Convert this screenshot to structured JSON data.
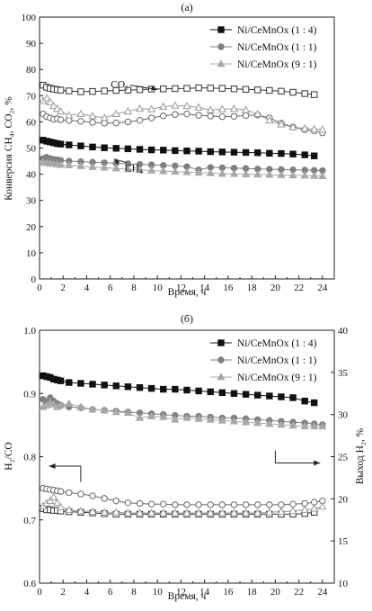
{
  "chart_data": [
    {
      "type": "line",
      "panel_label": "(а)",
      "xlabel": "Время, ч",
      "ylabel_left": "Конверсия CH₄, CO₂, %",
      "xlim": [
        0,
        25
      ],
      "ylim": [
        0,
        100
      ],
      "xticks": [
        "0",
        "2",
        "4",
        "6",
        "8",
        "10",
        "12",
        "14",
        "16",
        "18",
        "20",
        "22",
        "24"
      ],
      "yticks": [
        "0",
        "10",
        "20",
        "30",
        "40",
        "50",
        "60",
        "70",
        "80",
        "90",
        "100"
      ],
      "grid": false,
      "legend_position": "top-right",
      "annotations": [
        {
          "text": "CO₂",
          "points_to": "CO2 group",
          "at": [
            6.8,
            73
          ]
        },
        {
          "text": "CH₄",
          "points_to": "CH4 group",
          "at": [
            8.0,
            41
          ]
        }
      ],
      "series": [
        {
          "name": "Ni/CeMnOx (1 : 4)",
          "group": "CH4",
          "marker": "square-filled",
          "color": "#111111",
          "x": [
            0.3,
            0.6,
            0.9,
            1.2,
            1.5,
            1.8,
            2.5,
            3.5,
            4.5,
            5.5,
            6.5,
            7.5,
            8.5,
            9.5,
            10.5,
            11.5,
            12.5,
            13.5,
            14.5,
            15.5,
            16.5,
            17.5,
            18.5,
            19.5,
            20.5,
            21.5,
            22.5,
            23.3
          ],
          "y": [
            53,
            52.6,
            52.3,
            52,
            51.7,
            51.5,
            51.2,
            50.8,
            50.4,
            50.1,
            49.9,
            49.7,
            49.5,
            49.3,
            49.2,
            49,
            48.9,
            48.8,
            48.6,
            48.5,
            48.4,
            48.3,
            48.2,
            48,
            47.9,
            47.7,
            47.4,
            47
          ]
        },
        {
          "name": "Ni/CeMnOx (1 : 1)",
          "group": "CH4",
          "marker": "circle-filled",
          "color": "#808080",
          "x": [
            0.3,
            0.6,
            0.9,
            1.2,
            1.5,
            1.8,
            2.5,
            3.5,
            4.5,
            5.5,
            6.5,
            7.5,
            8.5,
            9.5,
            10.5,
            11.5,
            12.5,
            13.5,
            14.5,
            15.5,
            16.5,
            17.5,
            18.5,
            19.5,
            20.5,
            21.5,
            22.5,
            23.3,
            24
          ],
          "y": [
            46,
            46.5,
            46,
            45.7,
            45.5,
            45.3,
            45,
            44.8,
            44.6,
            44.4,
            44.2,
            44,
            43.8,
            43.6,
            43.4,
            43.2,
            42.9,
            41.7,
            42.6,
            42.5,
            42.3,
            42.2,
            42,
            41.9,
            41.8,
            41.7,
            41.6,
            41.5,
            41.4
          ]
        },
        {
          "name": "Ni/CeMnOx (9 : 1)",
          "group": "CH4",
          "marker": "triangle-filled",
          "color": "#a8a8a8",
          "x": [
            0.3,
            0.6,
            0.9,
            1.2,
            1.5,
            1.8,
            2.5,
            3.5,
            4.5,
            5.5,
            6.5,
            7.5,
            8.5,
            9.5,
            10.5,
            11.5,
            12.5,
            13.5,
            14.5,
            15.5,
            16.5,
            17.5,
            18.5,
            19.5,
            20.5,
            21.5,
            22.5,
            23.3,
            24
          ],
          "y": [
            44.5,
            44.3,
            44.1,
            44,
            43.8,
            43.6,
            43.4,
            43.1,
            42.8,
            42.5,
            42.2,
            41.9,
            41.6,
            41.4,
            41.2,
            41,
            40.8,
            40.6,
            40.4,
            40.2,
            40.1,
            40,
            39.9,
            39.8,
            39.7,
            39.6,
            39.5,
            39.4,
            39.3
          ]
        },
        {
          "name": "Ni/CeMnOx (1 : 4)",
          "group": "CO2",
          "marker": "square-open",
          "color": "#333333",
          "x": [
            0.3,
            0.6,
            0.9,
            1.2,
            1.5,
            1.8,
            2.5,
            3.5,
            4.5,
            5.5,
            6.5,
            7.5,
            8.5,
            9.5,
            10.5,
            11.5,
            12.5,
            13.5,
            14.5,
            15.5,
            16.5,
            17.5,
            18.5,
            19.5,
            20.5,
            21.5,
            22.5,
            23.3
          ],
          "y": [
            74,
            73.2,
            72.8,
            72.5,
            72.3,
            72.1,
            71.8,
            71.5,
            71.6,
            71.8,
            72,
            72.1,
            72.3,
            72.5,
            72.6,
            72.7,
            72.8,
            73,
            72.9,
            72.8,
            72.6,
            72.4,
            72.2,
            72,
            71.7,
            71.3,
            70.8,
            70.4
          ]
        },
        {
          "name": "Ni/CeMnOx (1 : 1)",
          "group": "CO2",
          "marker": "circle-open",
          "color": "#666666",
          "x": [
            0.3,
            0.6,
            0.9,
            1.2,
            1.5,
            1.8,
            2.5,
            3.5,
            4.5,
            5.5,
            6.5,
            7.5,
            8.5,
            9.5,
            10.5,
            11.5,
            12.5,
            13.5,
            14.5,
            15.5,
            16.5,
            17.5,
            18.5,
            19.5,
            20.5,
            21.5,
            22.5,
            23.3,
            24
          ],
          "y": [
            63,
            62,
            61.5,
            61,
            61.2,
            60.8,
            60.5,
            60.2,
            59.8,
            59.5,
            59.6,
            60,
            60.6,
            61.5,
            62.3,
            62.8,
            63,
            62.5,
            62.2,
            62,
            62.1,
            62.4,
            62.6,
            61.5,
            59.5,
            58,
            57,
            56.5,
            55.8
          ]
        },
        {
          "name": "Ni/CeMnOx (9 : 1)",
          "group": "CO2",
          "marker": "triangle-open",
          "color": "#9a9a9a",
          "x": [
            0.3,
            0.6,
            0.9,
            1.2,
            1.5,
            1.8,
            2.5,
            3.5,
            4.5,
            5.5,
            6.5,
            7.5,
            8.5,
            9.5,
            10.5,
            11.5,
            12.5,
            13.5,
            14.5,
            15.5,
            16.5,
            17.5,
            18.5,
            19.5,
            20.5,
            21.5,
            22.5,
            23.3,
            24
          ],
          "y": [
            68,
            69,
            67.5,
            66,
            65,
            64,
            62.5,
            63,
            62.2,
            61.5,
            63,
            64,
            65,
            64.8,
            65.8,
            66.2,
            66,
            65.5,
            64.5,
            64.8,
            65,
            64.5,
            63,
            60.5,
            59,
            58,
            57.5,
            57.2,
            57
          ]
        }
      ]
    },
    {
      "type": "line",
      "panel_label": "(б)",
      "xlabel": "Время, ч",
      "ylabel_left": "H₂/CO",
      "ylabel_right": "Выход H₂, %",
      "xlim": [
        0,
        25
      ],
      "ylim": [
        0.6,
        1.0
      ],
      "ylim_right": [
        10,
        40
      ],
      "xticks": [
        "0",
        "2",
        "4",
        "6",
        "8",
        "10",
        "12",
        "14",
        "16",
        "18",
        "20",
        "22",
        "24"
      ],
      "yticks": [
        "0.6",
        "0.7",
        "0.8",
        "0.9",
        "1.0"
      ],
      "yticks_right": [
        "10",
        "15",
        "20",
        "25",
        "30",
        "35",
        "40"
      ],
      "grid": false,
      "legend_position": "top-right",
      "annotations": [
        {
          "text": "",
          "arrow": "left",
          "meaning": "open markers read on left axis"
        },
        {
          "text": "",
          "arrow": "right",
          "meaning": "filled markers read on right axis"
        }
      ],
      "series": [
        {
          "name": "Ni/CeMnOx (1 : 4)",
          "axis": "right",
          "marker": "square-filled",
          "color": "#111111",
          "x": [
            0.3,
            0.6,
            0.9,
            1.2,
            1.5,
            1.8,
            2.5,
            3.5,
            4.5,
            5.5,
            6.5,
            7.5,
            8.5,
            9.5,
            10.5,
            11.5,
            12.5,
            13.5,
            14.5,
            15.5,
            16.5,
            17.5,
            18.5,
            19.5,
            20.5,
            21.5,
            22.5,
            23.3
          ],
          "y": [
            34.6,
            34.5,
            34.4,
            34.2,
            34.1,
            34,
            33.8,
            33.7,
            33.6,
            33.5,
            33.4,
            33.3,
            33.2,
            33.1,
            33,
            33,
            32.9,
            32.8,
            32.7,
            32.6,
            32.5,
            32.4,
            32.3,
            32.2,
            32.1,
            32,
            31.6,
            31.4
          ]
        },
        {
          "name": "Ni/CeMnOx (1 : 1)",
          "axis": "right",
          "marker": "circle-filled",
          "color": "#808080",
          "x": [
            0.3,
            0.6,
            0.9,
            1.2,
            1.5,
            1.8,
            2.5,
            3.5,
            4.5,
            5.5,
            6.5,
            7.5,
            8.5,
            9.5,
            10.5,
            11.5,
            12.5,
            13.5,
            14.5,
            15.5,
            16.5,
            17.5,
            18.5,
            19.5,
            20.5,
            21.5,
            22.5,
            23.3,
            24
          ],
          "y": [
            31.8,
            31.5,
            32,
            31.6,
            31.3,
            31.1,
            30.9,
            30.8,
            30.6,
            30.5,
            30.4,
            30.3,
            30.2,
            30.1,
            30,
            29.9,
            29.8,
            29.8,
            29.7,
            29.6,
            29.6,
            29.5,
            29.4,
            29.3,
            29.2,
            29.1,
            29,
            28.9,
            28.8
          ]
        },
        {
          "name": "Ni/CeMnOx (9 : 1)",
          "axis": "right",
          "marker": "triangle-filled",
          "color": "#a8a8a8",
          "x": [
            0.3,
            0.6,
            0.9,
            1.2,
            1.5,
            1.8,
            2.5,
            3.5,
            4.5,
            5.5,
            6.5,
            7.5,
            8.5,
            9.5,
            10.5,
            11.5,
            12.5,
            13.5,
            14.5,
            15.5,
            16.5,
            17.5,
            18.5,
            19.5,
            20.5,
            21.5,
            22.5,
            23.3,
            24
          ],
          "y": [
            30.9,
            31.1,
            31.4,
            31.2,
            30.9,
            31.1,
            31.3,
            30.9,
            30.6,
            30.5,
            30.3,
            30.2,
            29.6,
            29.8,
            29.7,
            29.4,
            29.6,
            29.5,
            29.4,
            29.3,
            29.2,
            29.1,
            29,
            28.9,
            28.8,
            28.7,
            28.6,
            28.6,
            28.6
          ]
        },
        {
          "name": "Ni/CeMnOx (1 : 4)",
          "axis": "left",
          "marker": "square-open",
          "color": "#333333",
          "x": [
            0.3,
            0.6,
            0.9,
            1.2,
            1.5,
            1.8,
            2.5,
            3.5,
            4.5,
            5.5,
            6.5,
            7.5,
            8.5,
            9.5,
            10.5,
            11.5,
            12.5,
            13.5,
            14.5,
            15.5,
            16.5,
            17.5,
            18.5,
            19.5,
            20.5,
            21.5,
            22.5,
            23.3
          ],
          "y": [
            0.718,
            0.716,
            0.716,
            0.715,
            0.715,
            0.714,
            0.713,
            0.712,
            0.711,
            0.71,
            0.709,
            0.709,
            0.709,
            0.709,
            0.709,
            0.709,
            0.709,
            0.709,
            0.709,
            0.709,
            0.709,
            0.709,
            0.709,
            0.709,
            0.709,
            0.709,
            0.71,
            0.712
          ]
        },
        {
          "name": "Ni/CeMnOx (1 : 1)",
          "axis": "left",
          "marker": "circle-open",
          "color": "#666666",
          "x": [
            0.3,
            0.6,
            0.9,
            1.2,
            1.5,
            1.8,
            2.5,
            3.5,
            4.5,
            5.5,
            6.5,
            7.5,
            8.5,
            9.5,
            10.5,
            11.5,
            12.5,
            13.5,
            14.5,
            15.5,
            16.5,
            17.5,
            18.5,
            19.5,
            20.5,
            21.5,
            22.5,
            23.3,
            24
          ],
          "y": [
            0.75,
            0.749,
            0.748,
            0.747,
            0.746,
            0.745,
            0.743,
            0.741,
            0.738,
            0.734,
            0.73,
            0.727,
            0.726,
            0.725,
            0.725,
            0.724,
            0.724,
            0.724,
            0.724,
            0.724,
            0.724,
            0.724,
            0.724,
            0.724,
            0.724,
            0.725,
            0.726,
            0.728,
            0.73
          ]
        },
        {
          "name": "Ni/CeMnOx (9 : 1)",
          "axis": "left",
          "marker": "triangle-open",
          "color": "#9a9a9a",
          "x": [
            0.3,
            0.6,
            0.9,
            1.2,
            1.5,
            1.8,
            2.5,
            3.5,
            4.5,
            5.5,
            6.5,
            7.5,
            8.5,
            9.5,
            10.5,
            11.5,
            12.5,
            13.5,
            14.5,
            15.5,
            16.5,
            17.5,
            18.5,
            19.5,
            20.5,
            21.5,
            22.5,
            23.3,
            24
          ],
          "y": [
            0.722,
            0.726,
            0.73,
            0.736,
            0.727,
            0.72,
            0.716,
            0.714,
            0.713,
            0.712,
            0.712,
            0.711,
            0.711,
            0.711,
            0.711,
            0.711,
            0.711,
            0.711,
            0.711,
            0.711,
            0.711,
            0.711,
            0.711,
            0.712,
            0.713,
            0.714,
            0.716,
            0.718,
            0.721
          ]
        }
      ]
    }
  ]
}
